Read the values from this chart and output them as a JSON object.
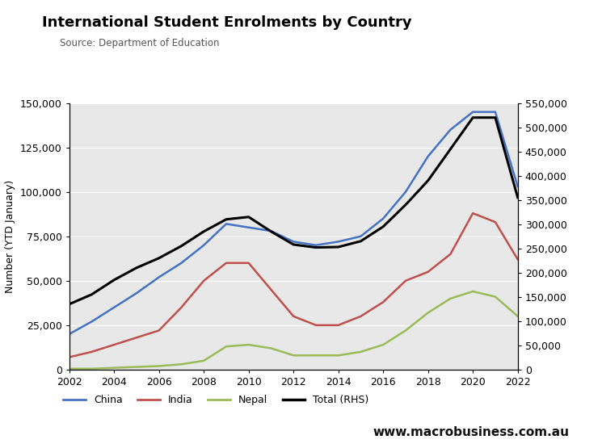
{
  "title": "International Student Enrolments by Country",
  "source": "Source: Department of Education",
  "ylabel_left": "Number (YTD January)",
  "years": [
    2002,
    2003,
    2004,
    2005,
    2006,
    2007,
    2008,
    2009,
    2010,
    2011,
    2012,
    2013,
    2014,
    2015,
    2016,
    2017,
    2018,
    2019,
    2020,
    2021,
    2022
  ],
  "china": [
    20000,
    27000,
    35000,
    43000,
    52000,
    60000,
    70000,
    82000,
    80000,
    78000,
    72000,
    70000,
    72000,
    75000,
    85000,
    100000,
    120000,
    135000,
    145000,
    145000,
    103000
  ],
  "india": [
    7000,
    10000,
    14000,
    18000,
    22000,
    35000,
    50000,
    60000,
    60000,
    45000,
    30000,
    25000,
    25000,
    30000,
    38000,
    50000,
    55000,
    65000,
    88000,
    83000,
    62000
  ],
  "nepal": [
    500,
    500,
    1000,
    1500,
    2000,
    3000,
    5000,
    13000,
    14000,
    12000,
    8000,
    8000,
    8000,
    10000,
    14000,
    22000,
    32000,
    40000,
    44000,
    41000,
    30000
  ],
  "total": [
    135000,
    155000,
    185000,
    210000,
    230000,
    255000,
    285000,
    310000,
    315000,
    285000,
    258000,
    252000,
    253000,
    265000,
    295000,
    340000,
    390000,
    455000,
    520000,
    520000,
    355000
  ],
  "ylim_left": [
    0,
    150000
  ],
  "ylim_right": [
    0,
    550000
  ],
  "yticks_left": [
    0,
    25000,
    50000,
    75000,
    100000,
    125000,
    150000
  ],
  "yticks_right": [
    0,
    50000,
    100000,
    150000,
    200000,
    250000,
    300000,
    350000,
    400000,
    450000,
    500000,
    550000
  ],
  "bg_color": "#e8e8e8",
  "china_color": "#4472C4",
  "india_color": "#C0504D",
  "nepal_color": "#9BBB59",
  "total_color": "#000000",
  "logo_bg": "#CC0000",
  "website": "www.macrobusiness.com.au",
  "legend_labels": [
    "China",
    "India",
    "Nepal",
    "Total (RHS)"
  ],
  "fig_width": 7.45,
  "fig_height": 5.55,
  "dpi": 100
}
